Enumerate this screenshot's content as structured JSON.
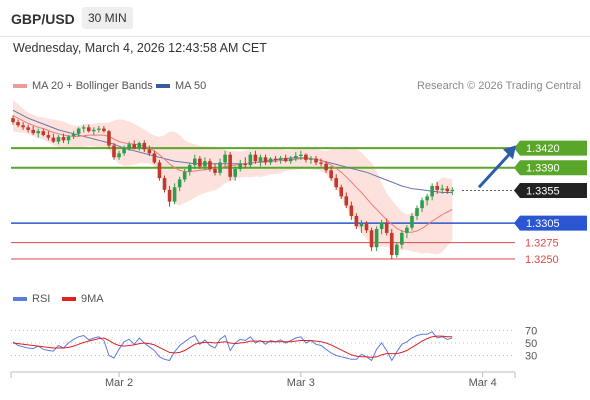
{
  "header": {
    "symbol": "GBP/USD",
    "timeframe": "30 MIN"
  },
  "timestamp": "Wednesday, March 4, 2026 12:43:58 AM CET",
  "legend": {
    "ma20_label": "MA 20 + Bollinger Bands",
    "ma50_label": "MA 50",
    "rsi_label": "RSI",
    "ma9_label": "9MA"
  },
  "research": "Research © 2026 Trading Central",
  "colors": {
    "up_candle": "#2e9e4e",
    "down_candle": "#c0392b",
    "ma20": "#ef7b7b",
    "ma50": "#6b75a8",
    "bollinger_fill": "#fde1dc",
    "resistance": "#5aa62a",
    "pivot": "#2a56d1",
    "support": "#e04848",
    "last_price": "#222222",
    "rsi": "#5b7be0",
    "rsi_ma": "#dd2222"
  },
  "levels": [
    {
      "value": "1.3420",
      "price": 1.342,
      "type": "resistance"
    },
    {
      "value": "1.3390",
      "price": 1.339,
      "type": "resistance"
    },
    {
      "value": "1.3355",
      "price": 1.3355,
      "type": "last"
    },
    {
      "value": "1.3305",
      "price": 1.3305,
      "type": "pivot"
    },
    {
      "value": "1.3275",
      "price": 1.3275,
      "type": "support"
    },
    {
      "value": "1.3250",
      "price": 1.325,
      "type": "support"
    }
  ],
  "chart_data": {
    "type": "candlestick",
    "x_tick_labels": [
      "Mar 2",
      "Mar 3",
      "Mar 4"
    ],
    "x_tick_index": [
      21,
      57,
      93
    ],
    "price_range": [
      1.323,
      1.35
    ],
    "candles": [
      [
        1.3466,
        1.347,
        1.3456,
        1.346
      ],
      [
        1.346,
        1.3464,
        1.3452,
        1.3455
      ],
      [
        1.3455,
        1.346,
        1.3448,
        1.3452
      ],
      [
        1.3452,
        1.3456,
        1.3444,
        1.3448
      ],
      [
        1.3448,
        1.3454,
        1.344,
        1.3443
      ],
      [
        1.3443,
        1.345,
        1.3436,
        1.3446
      ],
      [
        1.3446,
        1.345,
        1.3438,
        1.344
      ],
      [
        1.344,
        1.3446,
        1.3432,
        1.3436
      ],
      [
        1.3436,
        1.3442,
        1.3428,
        1.343
      ],
      [
        1.343,
        1.344,
        1.3426,
        1.3437
      ],
      [
        1.3437,
        1.3442,
        1.3428,
        1.3432
      ],
      [
        1.3432,
        1.344,
        1.3426,
        1.3438
      ],
      [
        1.3438,
        1.3446,
        1.3434,
        1.3442
      ],
      [
        1.3442,
        1.3452,
        1.3438,
        1.345
      ],
      [
        1.345,
        1.3456,
        1.3444,
        1.3452
      ],
      [
        1.3452,
        1.3456,
        1.3444,
        1.3446
      ],
      [
        1.3446,
        1.3452,
        1.344,
        1.3448
      ],
      [
        1.3448,
        1.3454,
        1.3444,
        1.345
      ],
      [
        1.345,
        1.3454,
        1.3444,
        1.3446
      ],
      [
        1.3446,
        1.3448,
        1.342,
        1.3424
      ],
      [
        1.3424,
        1.3428,
        1.3402,
        1.3406
      ],
      [
        1.3406,
        1.3416,
        1.3402,
        1.3412
      ],
      [
        1.3412,
        1.3424,
        1.3408,
        1.342
      ],
      [
        1.342,
        1.343,
        1.3416,
        1.3426
      ],
      [
        1.3426,
        1.3432,
        1.3418,
        1.342
      ],
      [
        1.342,
        1.343,
        1.3416,
        1.3428
      ],
      [
        1.3428,
        1.3432,
        1.3414,
        1.3418
      ],
      [
        1.3418,
        1.3424,
        1.3408,
        1.3412
      ],
      [
        1.3412,
        1.3416,
        1.3396,
        1.3398
      ],
      [
        1.3398,
        1.3402,
        1.337,
        1.3374
      ],
      [
        1.3374,
        1.3378,
        1.3352,
        1.3356
      ],
      [
        1.3356,
        1.3362,
        1.333,
        1.3338
      ],
      [
        1.3338,
        1.3366,
        1.3334,
        1.336
      ],
      [
        1.336,
        1.3376,
        1.3354,
        1.3372
      ],
      [
        1.3372,
        1.3388,
        1.3368,
        1.3384
      ],
      [
        1.3384,
        1.3398,
        1.3378,
        1.3394
      ],
      [
        1.3394,
        1.341,
        1.3388,
        1.3404
      ],
      [
        1.3404,
        1.3408,
        1.3388,
        1.3392
      ],
      [
        1.3392,
        1.3406,
        1.3386,
        1.34
      ],
      [
        1.34,
        1.3404,
        1.3384,
        1.3388
      ],
      [
        1.3388,
        1.3396,
        1.3378,
        1.3382
      ],
      [
        1.3382,
        1.3404,
        1.3378,
        1.3398
      ],
      [
        1.3398,
        1.3416,
        1.3392,
        1.341
      ],
      [
        1.341,
        1.3414,
        1.337,
        1.3376
      ],
      [
        1.3376,
        1.3392,
        1.337,
        1.3388
      ],
      [
        1.3388,
        1.3402,
        1.3384,
        1.3396
      ],
      [
        1.3396,
        1.3406,
        1.339,
        1.3394
      ],
      [
        1.3394,
        1.3414,
        1.339,
        1.341
      ],
      [
        1.341,
        1.3416,
        1.3396,
        1.34
      ],
      [
        1.34,
        1.341,
        1.3392,
        1.3406
      ],
      [
        1.3406,
        1.341,
        1.3394,
        1.3398
      ],
      [
        1.3398,
        1.3406,
        1.3394,
        1.3404
      ],
      [
        1.3404,
        1.3408,
        1.3398,
        1.3402
      ],
      [
        1.3402,
        1.3408,
        1.3396,
        1.3405
      ],
      [
        1.3405,
        1.341,
        1.3398,
        1.34
      ],
      [
        1.34,
        1.3408,
        1.3396,
        1.3404
      ],
      [
        1.3404,
        1.3414,
        1.34,
        1.3408
      ],
      [
        1.3408,
        1.3416,
        1.3402,
        1.341
      ],
      [
        1.341,
        1.3412,
        1.3398,
        1.3402
      ],
      [
        1.3402,
        1.3408,
        1.3396,
        1.3404
      ],
      [
        1.3404,
        1.3408,
        1.3394,
        1.3398
      ],
      [
        1.3398,
        1.3404,
        1.3392,
        1.3396
      ],
      [
        1.3396,
        1.34,
        1.3382,
        1.3386
      ],
      [
        1.3386,
        1.3392,
        1.337,
        1.3374
      ],
      [
        1.3374,
        1.338,
        1.3356,
        1.336
      ],
      [
        1.336,
        1.3364,
        1.3342,
        1.3346
      ],
      [
        1.3346,
        1.3352,
        1.3328,
        1.3332
      ],
      [
        1.3332,
        1.3338,
        1.331,
        1.3316
      ],
      [
        1.3316,
        1.332,
        1.3296,
        1.33
      ],
      [
        1.33,
        1.331,
        1.329,
        1.3304
      ],
      [
        1.3304,
        1.3308,
        1.329,
        1.3294
      ],
      [
        1.3294,
        1.3298,
        1.3262,
        1.3268
      ],
      [
        1.3268,
        1.33,
        1.3262,
        1.3296
      ],
      [
        1.3296,
        1.331,
        1.3288,
        1.3306
      ],
      [
        1.3306,
        1.3312,
        1.3286,
        1.329
      ],
      [
        1.329,
        1.3296,
        1.325,
        1.3256
      ],
      [
        1.3256,
        1.3276,
        1.3252,
        1.3272
      ],
      [
        1.3272,
        1.3294,
        1.3266,
        1.329
      ],
      [
        1.329,
        1.3302,
        1.3282,
        1.3298
      ],
      [
        1.3298,
        1.332,
        1.3294,
        1.3316
      ],
      [
        1.3316,
        1.3332,
        1.331,
        1.3328
      ],
      [
        1.3328,
        1.3344,
        1.3322,
        1.334
      ],
      [
        1.334,
        1.335,
        1.3332,
        1.3346
      ],
      [
        1.3346,
        1.3366,
        1.334,
        1.3362
      ],
      [
        1.3362,
        1.3368,
        1.335,
        1.3356
      ],
      [
        1.3356,
        1.3364,
        1.335,
        1.3358
      ],
      [
        1.3358,
        1.3362,
        1.335,
        1.3354
      ],
      [
        1.3354,
        1.336,
        1.3348,
        1.3356
      ]
    ],
    "ma50": [
      1.3478,
      1.3474,
      1.347,
      1.3466,
      1.3463,
      1.346,
      1.3457,
      1.3454,
      1.3451,
      1.3448,
      1.3446,
      1.3444,
      1.3442,
      1.344,
      1.3438,
      1.3436,
      1.3434,
      1.3432,
      1.343,
      1.3428,
      1.3426,
      1.3423,
      1.342,
      1.3418,
      1.3416,
      1.3414,
      1.3412,
      1.341,
      1.3408,
      1.3406,
      1.3404,
      1.3402,
      1.34,
      1.3399,
      1.3398,
      1.3397,
      1.3396,
      1.3396,
      1.3396,
      1.3396,
      1.3396,
      1.3396,
      1.3396,
      1.3396,
      1.3396,
      1.3396,
      1.3396,
      1.3397,
      1.3398,
      1.3399,
      1.34,
      1.3401,
      1.3402,
      1.3403,
      1.3404,
      1.3405,
      1.3405,
      1.3405,
      1.3405,
      1.3404,
      1.3403,
      1.3401,
      1.3399,
      1.3397,
      1.3395,
      1.3393,
      1.3391,
      1.3389,
      1.3387,
      1.3385,
      1.3383,
      1.338,
      1.3377,
      1.3374,
      1.3371,
      1.3368,
      1.3365,
      1.3362,
      1.336,
      1.3358,
      1.3357,
      1.3356,
      1.3355,
      1.3354,
      1.3353,
      1.3352,
      1.3352,
      1.3352
    ],
    "ma20": [
      1.347,
      1.3466,
      1.3462,
      1.3458,
      1.3455,
      1.3452,
      1.345,
      1.3447,
      1.3444,
      1.3442,
      1.344,
      1.3439,
      1.3438,
      1.3438,
      1.3439,
      1.344,
      1.344,
      1.344,
      1.344,
      1.3438,
      1.3434,
      1.343,
      1.3428,
      1.3427,
      1.3426,
      1.3425,
      1.3423,
      1.342,
      1.3416,
      1.341,
      1.3403,
      1.3396,
      1.339,
      1.3386,
      1.3384,
      1.3384,
      1.3385,
      1.3386,
      1.3387,
      1.3388,
      1.3389,
      1.339,
      1.3392,
      1.3393,
      1.3394,
      1.3395,
      1.3396,
      1.3397,
      1.3398,
      1.3398,
      1.3399,
      1.34,
      1.34,
      1.3401,
      1.3401,
      1.3402,
      1.3403,
      1.3404,
      1.3404,
      1.3404,
      1.3403,
      1.3401,
      1.3398,
      1.3394,
      1.3389,
      1.3383,
      1.3376,
      1.3368,
      1.336,
      1.3352,
      1.3343,
      1.3334,
      1.3326,
      1.3318,
      1.331,
      1.3303,
      1.3297,
      1.3293,
      1.3291,
      1.3291,
      1.3293,
      1.3297,
      1.3302,
      1.3308,
      1.3313,
      1.3318,
      1.3322,
      1.3326
    ],
    "rsi_range": [
      10,
      90
    ],
    "rsi_ticks": [
      70,
      50,
      30
    ],
    "rsi": [
      52,
      46,
      44,
      42,
      41,
      45,
      40,
      38,
      37,
      46,
      42,
      50,
      56,
      60,
      62,
      55,
      58,
      60,
      54,
      30,
      26,
      40,
      52,
      56,
      48,
      58,
      50,
      44,
      38,
      28,
      24,
      22,
      36,
      46,
      52,
      58,
      62,
      48,
      55,
      46,
      42,
      56,
      62,
      38,
      50,
      56,
      54,
      60,
      50,
      54,
      48,
      54,
      52,
      55,
      50,
      54,
      58,
      60,
      50,
      54,
      48,
      46,
      40,
      34,
      30,
      28,
      26,
      24,
      24,
      32,
      28,
      22,
      40,
      50,
      38,
      22,
      36,
      48,
      52,
      58,
      62,
      64,
      64,
      68,
      58,
      60,
      56,
      58
    ],
    "rsi_ma": [
      50,
      49,
      48,
      47,
      46,
      45,
      44,
      43,
      42,
      42,
      42,
      43,
      45,
      48,
      51,
      53,
      55,
      57,
      58,
      54,
      49,
      46,
      45,
      46,
      47,
      49,
      50,
      49,
      47,
      43,
      39,
      35,
      34,
      35,
      38,
      43,
      48,
      50,
      51,
      51,
      50,
      51,
      52,
      50,
      49,
      50,
      51,
      53,
      53,
      53,
      52,
      52,
      52,
      52,
      52,
      52,
      53,
      54,
      54,
      54,
      53,
      52,
      50,
      47,
      43,
      39,
      35,
      31,
      29,
      28,
      28,
      27,
      28,
      31,
      33,
      33,
      33,
      35,
      38,
      43,
      48,
      53,
      57,
      60,
      61,
      61,
      60,
      60
    ]
  }
}
